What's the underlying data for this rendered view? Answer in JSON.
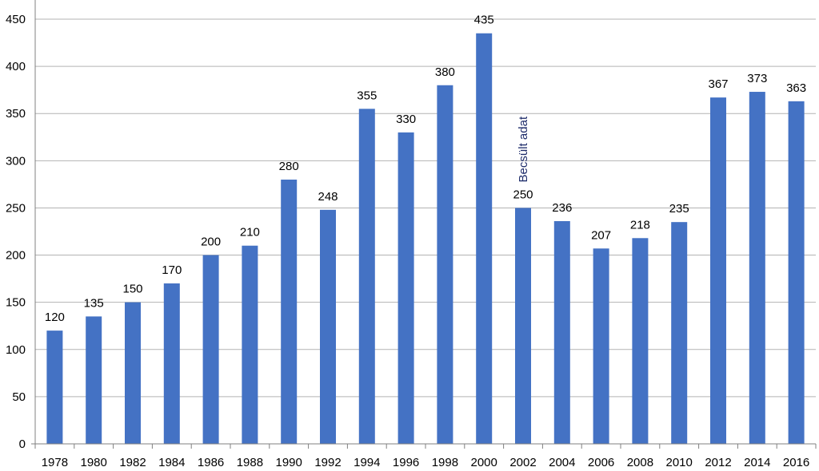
{
  "chart_data": {
    "type": "bar",
    "title": "",
    "xlabel": "",
    "ylabel": "",
    "categories": [
      "1978",
      "1980",
      "1982",
      "1984",
      "1986",
      "1988",
      "1990",
      "1992",
      "1994",
      "1996",
      "1998",
      "2000",
      "2002",
      "2004",
      "2006",
      "2008",
      "2010",
      "2012",
      "2014",
      "2016"
    ],
    "values": [
      120,
      135,
      150,
      170,
      200,
      210,
      280,
      248,
      355,
      330,
      380,
      435,
      250,
      236,
      207,
      218,
      235,
      367,
      373,
      363
    ],
    "data_labels": [
      "120",
      "135",
      "150",
      "170",
      "200",
      "210",
      "280",
      "248",
      "355",
      "330",
      "380",
      "435",
      "250",
      "236",
      "207",
      "218",
      "235",
      "367",
      "373",
      "363"
    ],
    "ylim": [
      0,
      450
    ],
    "yticks": [
      "0",
      "50",
      "100",
      "150",
      "200",
      "250",
      "300",
      "350",
      "400",
      "450"
    ],
    "grid": true,
    "legend": "none",
    "bar_color": "#4472c4",
    "annotations": [
      {
        "category": "2002",
        "text": "Becsült adat",
        "orientation": "vertical"
      }
    ]
  }
}
